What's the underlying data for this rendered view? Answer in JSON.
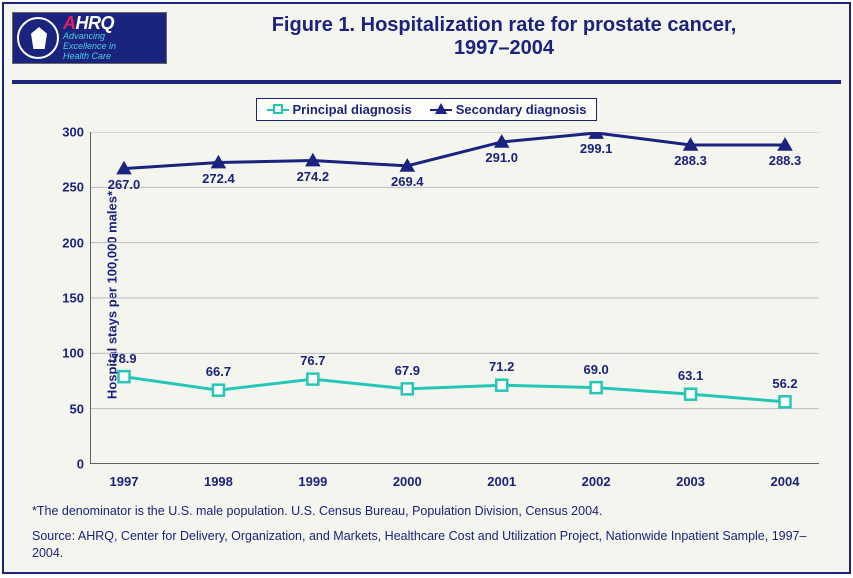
{
  "title": {
    "line1": "Figure 1. Hospitalization rate for prostate cancer,",
    "line2": "1997–2004",
    "color": "#1a237e",
    "fontsize": 20
  },
  "logo": {
    "brand_html": "AHRQ",
    "tagline1": "Advancing",
    "tagline2": "Excellence in",
    "tagline3": "Health Care"
  },
  "legend": {
    "items": [
      {
        "label": "Principal diagnosis",
        "markerColor": "#26c6b7",
        "marker": "square"
      },
      {
        "label": "Secondary diagnosis",
        "markerColor": "#1a237e",
        "marker": "triangle"
      }
    ],
    "border_color": "#1a237e",
    "bg": "#ffffff"
  },
  "chart": {
    "type": "line",
    "background_color": "#f5f5f0",
    "grid_color": "#bbbbbb",
    "axis_color": "#333333",
    "categories": [
      "1997",
      "1998",
      "1999",
      "2000",
      "2001",
      "2002",
      "2003",
      "2004"
    ],
    "ylim": [
      0,
      300
    ],
    "ytick_step": 50,
    "ylabel": "Hospital stays per 100,000 males*",
    "label_fontsize": 13,
    "series": [
      {
        "name": "Principal diagnosis",
        "color": "#26c6b7",
        "marker": "square",
        "marker_size": 11,
        "line_width": 3,
        "values": [
          78.9,
          66.7,
          76.7,
          67.9,
          71.2,
          69.0,
          63.1,
          56.2
        ],
        "value_labels": [
          "78.9",
          "66.7",
          "76.7",
          "67.9",
          "71.2",
          "69.0",
          "63.1",
          "56.2"
        ],
        "label_pos": "above"
      },
      {
        "name": "Secondary diagnosis",
        "color": "#1a237e",
        "marker": "triangle",
        "marker_size": 13,
        "line_width": 3,
        "values": [
          267.0,
          272.4,
          274.2,
          269.4,
          291.0,
          299.1,
          288.3,
          288.3
        ],
        "value_labels": [
          "267.0",
          "272.4",
          "274.2",
          "269.4",
          "291.0",
          "299.1",
          "288.3",
          "288.3"
        ],
        "label_pos": "below"
      }
    ]
  },
  "footnotes": {
    "note1": "*The denominator is the U.S. male population. U.S. Census Bureau, Population Division, Census 2004.",
    "note2": "Source: AHRQ, Center for Delivery, Organization, and Markets, Healthcare Cost and Utilization Project, Nationwide Inpatient Sample, 1997–2004."
  }
}
